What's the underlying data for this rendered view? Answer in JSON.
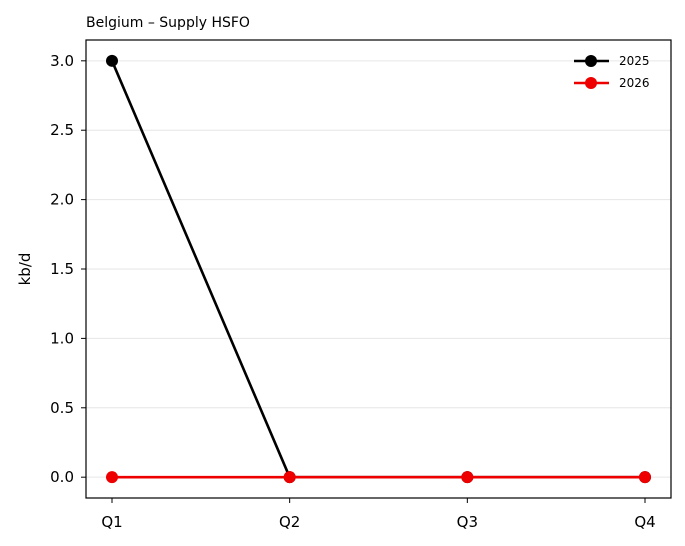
{
  "chart_data": {
    "type": "line",
    "title": "Belgium – Supply HSFO",
    "xlabel": "",
    "ylabel": "kb/d",
    "categories": [
      "Q1",
      "Q2",
      "Q3",
      "Q4"
    ],
    "ylim": [
      -0.15,
      3.15
    ],
    "yticks": [
      "0.0",
      "0.5",
      "1.0",
      "1.5",
      "2.0",
      "2.5",
      "3.0"
    ],
    "ytick_values": [
      0,
      0.5,
      1.0,
      1.5,
      2.0,
      2.5,
      3.0
    ],
    "grid": "horizontal",
    "legend_position": "top-right",
    "series": [
      {
        "name": "2025",
        "values": [
          3.0,
          0.0,
          0.0,
          0.0
        ],
        "color": "#000000"
      },
      {
        "name": "2026",
        "values": [
          0.0,
          0.0,
          0.0,
          0.0
        ],
        "color": "#ee0000"
      }
    ]
  }
}
